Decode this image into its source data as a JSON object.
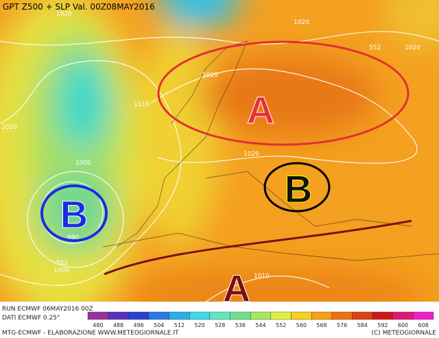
{
  "header": {
    "title": "GPT Z500 + SLP Val. 00Z08MAY2016"
  },
  "map": {
    "labels": [
      "1020",
      "1020",
      "552",
      "1020",
      "1020",
      "1010",
      "1020",
      "1020",
      "1000",
      "990",
      "552",
      "1000",
      "1010",
      "A",
      "B",
      "B",
      "A"
    ]
  },
  "run": {
    "line1": "RUN ECMWF 06MAY2016 00Z",
    "line2": "DATI ECMWF 0.25°"
  },
  "legend": {
    "labels": [
      "480",
      "488",
      "496",
      "504",
      "512",
      "520",
      "528",
      "536",
      "544",
      "552",
      "560",
      "568",
      "576",
      "584",
      "592",
      "600",
      "608"
    ],
    "colors": [
      "#9a2fa0",
      "#5a2fb8",
      "#2b3fd0",
      "#2a78e0",
      "#29b0ea",
      "#3fd8e8",
      "#5fe8c0",
      "#70e090",
      "#a8e860",
      "#e0f040",
      "#f8d020",
      "#f8a010",
      "#f07010",
      "#e04010",
      "#d01818",
      "#e01878",
      "#f020c8"
    ]
  },
  "footer": {
    "left": "MTG-ECMWF - ELABORAZIONE WWW.METEOGIORNALE.IT",
    "right": "(C) METEOGIORNALE"
  }
}
